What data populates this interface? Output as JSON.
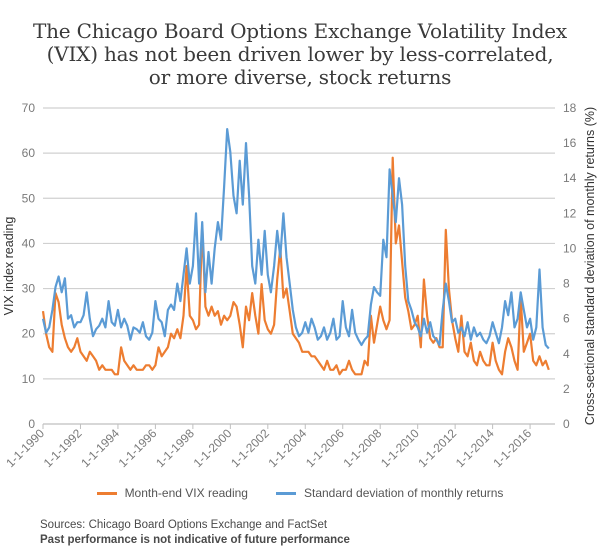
{
  "colors": {
    "vix": "#ED7D31",
    "sd": "#5B9BD5",
    "grid": "#d0d0d0",
    "axis": "#bfbfbf"
  },
  "chart_data": {
    "type": "line",
    "title": "The  Chicago Board Options Exchange Volatility Index (VIX) has not been  driven lower by less-correlated, or more diverse, stock returns",
    "title_lines": [
      "The  Chicago Board Options Exchange Volatility Index",
      "(VIX) has not been  driven lower by less-correlated,",
      "or more diverse, stock returns"
    ],
    "xlabel": "",
    "ylabel": "VIX index reading",
    "y2label": "Cross-sectional standard deviation of monthly returns (%)",
    "xlim": [
      1990.0,
      2017.33
    ],
    "ylim": [
      0,
      70
    ],
    "y2lim": [
      0,
      18
    ],
    "yticks": [
      0,
      10,
      20,
      30,
      40,
      50,
      60,
      70
    ],
    "y2ticks": [
      0,
      2,
      4,
      6,
      8,
      10,
      12,
      14,
      16,
      18
    ],
    "xticks": [
      1990,
      1992,
      1994,
      1996,
      1998,
      2000,
      2002,
      2004,
      2006,
      2008,
      2010,
      2012,
      2014,
      2016
    ],
    "xtick_labels": [
      "1-1-1990",
      "1-1-1992",
      "1-1-1994",
      "1-1-1996",
      "1-1-1998",
      "1-1-2000",
      "1-1-2002",
      "1-1-2004",
      "1-1-2006",
      "1-1-2008",
      "1-1-2010",
      "1-1-2012",
      "1-1-2014",
      "1-1-2016"
    ],
    "grid": true,
    "legend_position": "bottom",
    "x_start": 1990.0,
    "x_step_years": 0.16667,
    "series": [
      {
        "name": "Month-end VIX reading",
        "axis": "left",
        "color": "#ED7D31",
        "values": [
          25,
          20,
          17,
          16,
          29,
          27,
          22,
          19,
          17,
          16,
          17,
          19,
          16,
          15,
          14,
          16,
          15,
          14,
          12,
          13,
          12,
          12,
          12,
          11,
          11,
          17,
          14,
          13,
          12,
          13,
          12,
          12,
          12,
          13,
          13,
          12,
          13,
          17,
          15,
          16,
          17,
          20,
          19,
          21,
          19,
          24,
          35,
          24,
          23,
          21,
          22,
          44,
          26,
          24,
          26,
          24,
          25,
          22,
          24,
          23,
          24,
          27,
          26,
          22,
          17,
          26,
          23,
          29,
          24,
          20,
          31,
          23,
          21,
          20,
          22,
          32,
          39,
          28,
          30,
          25,
          20,
          19,
          18,
          16,
          16,
          16,
          15,
          15,
          14,
          13,
          12,
          14,
          12,
          12,
          13,
          11,
          12,
          12,
          14,
          12,
          11,
          11,
          11,
          14,
          13,
          24,
          18,
          22,
          26,
          23,
          21,
          23,
          59,
          40,
          44,
          36,
          28,
          25,
          21,
          22,
          24,
          17,
          32,
          24,
          19,
          18,
          19,
          17,
          17,
          43,
          30,
          23,
          19,
          16,
          24,
          16,
          15,
          18,
          14,
          13,
          16,
          14,
          13,
          13,
          18,
          14,
          12,
          11,
          16,
          19,
          17,
          14,
          12,
          28,
          16,
          18,
          20,
          14,
          13,
          15,
          13,
          14,
          12
        ]
      },
      {
        "name": "Standard deviation of monthly returns",
        "axis": "right",
        "color": "#5B9BD5",
        "values": [
          6.0,
          5.2,
          5.5,
          6.5,
          7.8,
          8.4,
          7.5,
          8.3,
          6.0,
          6.2,
          5.5,
          5.8,
          5.8,
          6.2,
          7.5,
          6.0,
          5.0,
          5.4,
          5.6,
          6.0,
          5.5,
          7.0,
          5.8,
          5.6,
          6.5,
          5.5,
          6.0,
          5.6,
          4.8,
          5.5,
          5.4,
          5.2,
          5.8,
          5.0,
          4.8,
          5.2,
          7.0,
          6.0,
          5.8,
          5.0,
          6.5,
          6.8,
          6.5,
          8.0,
          7.0,
          8.5,
          10.0,
          8.0,
          9.0,
          12.0,
          8.0,
          11.5,
          7.5,
          9.8,
          8.0,
          10.0,
          11.5,
          10.5,
          13.5,
          16.8,
          15.5,
          13.0,
          12.0,
          15.0,
          12.5,
          16.0,
          13.0,
          9.0,
          8.0,
          10.5,
          8.5,
          11.0,
          8.5,
          7.5,
          9.0,
          11.0,
          9.5,
          12.0,
          9.5,
          8.0,
          6.5,
          5.5,
          5.0,
          5.2,
          5.8,
          5.2,
          6.0,
          5.5,
          4.8,
          5.0,
          5.5,
          4.8,
          5.2,
          6.0,
          4.8,
          5.0,
          7.0,
          5.5,
          5.0,
          6.5,
          5.2,
          4.8,
          4.5,
          4.8,
          5.0,
          6.8,
          7.8,
          7.5,
          7.3,
          10.5,
          9.5,
          14.5,
          13.0,
          11.5,
          14.0,
          12.5,
          9.0,
          7.0,
          6.5,
          5.8,
          5.5,
          5.0,
          6.0,
          5.2,
          5.8,
          5.0,
          4.8,
          4.5,
          6.5,
          8.0,
          7.0,
          5.8,
          6.0,
          5.2,
          5.5,
          5.0,
          5.8,
          4.8,
          5.5,
          5.0,
          5.2,
          4.8,
          4.6,
          5.0,
          5.8,
          5.2,
          4.6,
          5.5,
          7.0,
          6.2,
          7.5,
          5.5,
          6.0,
          7.5,
          6.5,
          5.5,
          6.0,
          4.8,
          5.5,
          8.8,
          5.5,
          4.5,
          4.3
        ]
      }
    ]
  },
  "legend": {
    "items": [
      {
        "label": "Month-end VIX reading",
        "color": "#ED7D31"
      },
      {
        "label": "Standard deviation of monthly returns",
        "color": "#5B9BD5"
      }
    ]
  },
  "footer": {
    "sources": "Sources: Chicago Board Options Exchange and FactSet",
    "disclaimer": "Past performance is not indicative of future performance"
  }
}
